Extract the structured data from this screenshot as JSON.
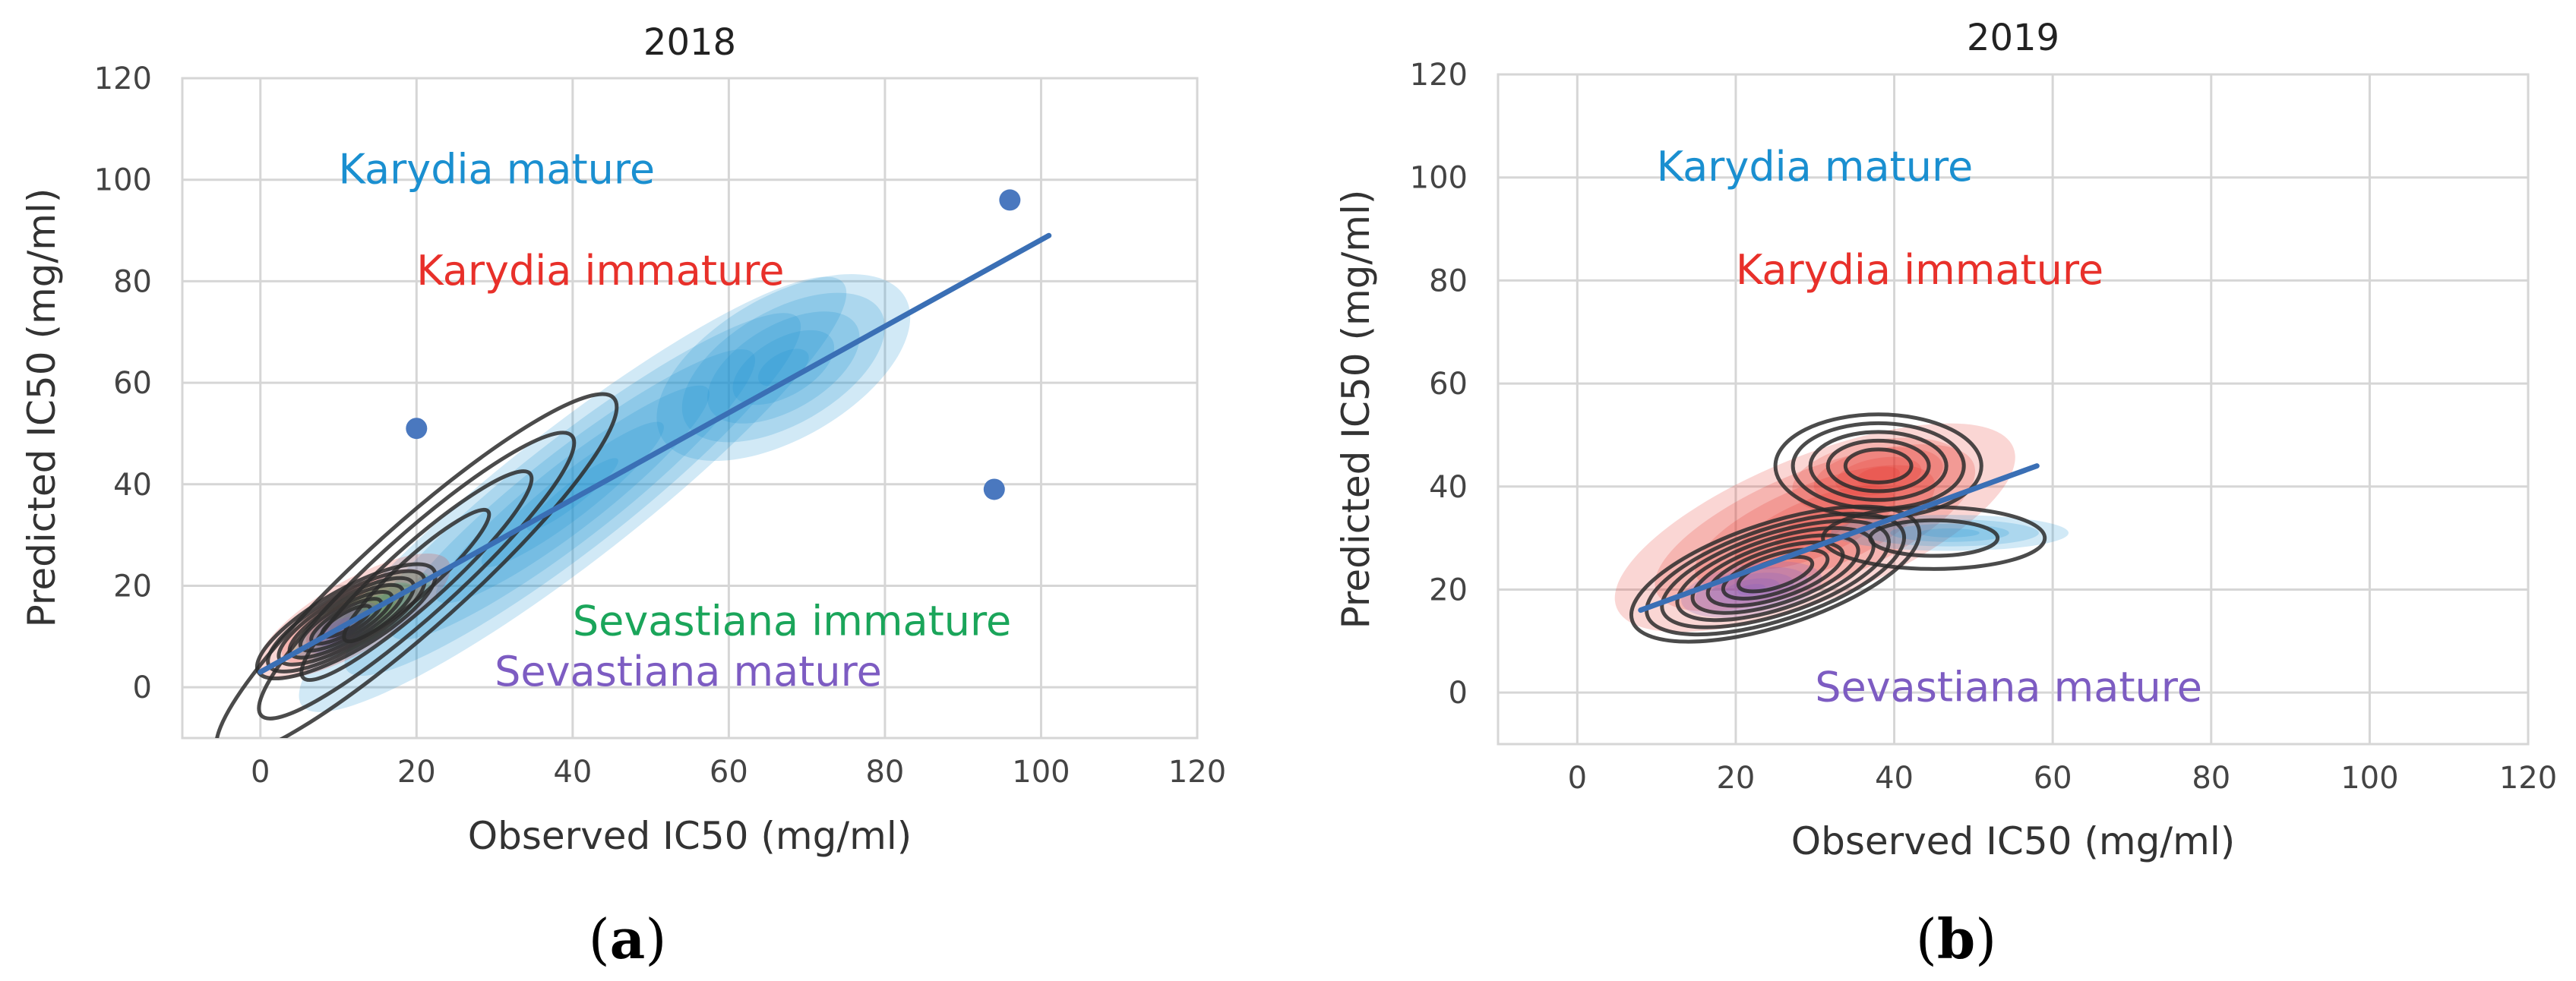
{
  "colors": {
    "karydia_mature": "#1a8fd0",
    "karydia_immature": "#e8302a",
    "sevastiana_immature": "#1aa55a",
    "sevastiana_mature": "#7d5cc2",
    "regression_line": "#3a6fb5",
    "points": "#4a78bf",
    "contour": "#2b2b2b",
    "grid": "#d6d6d6"
  },
  "chart_data": [
    {
      "type": "scatter",
      "title": "2018",
      "caption_letter": "a",
      "xlabel": "Observed IC50 (mg/ml)",
      "ylabel": "Predicted IC50 (mg/ml)",
      "xlim": [
        -10,
        120
      ],
      "ylim": [
        -10,
        120
      ],
      "xticks": [
        "0",
        "20",
        "40",
        "60",
        "80",
        "100",
        "120"
      ],
      "yticks": [
        "0",
        "20",
        "40",
        "60",
        "80",
        "100",
        "120"
      ],
      "grid": true,
      "annotations": [
        {
          "text": "Karydia mature",
          "color": "#1a8fd0",
          "x": 10,
          "y": 102
        },
        {
          "text": "Karydia immature",
          "color": "#e8302a",
          "x": 20,
          "y": 82
        },
        {
          "text": "Sevastiana immature",
          "color": "#1aa55a",
          "x": 40,
          "y": 13
        },
        {
          "text": "Sevastiana mature",
          "color": "#7d5cc2",
          "x": 30,
          "y": 3
        }
      ],
      "regression": {
        "x": [
          0,
          101
        ],
        "y": [
          3,
          89
        ]
      },
      "points": [
        {
          "x": 96,
          "y": 96
        },
        {
          "x": 94,
          "y": 39
        },
        {
          "x": 20,
          "y": 51
        }
      ],
      "density_regions": [
        {
          "name": "Karydia mature",
          "color": "#1a8fd0",
          "cx": 40,
          "cy": 38,
          "rx": 44,
          "ry": 13,
          "angle": 38,
          "levels": 6
        },
        {
          "name": "Karydia mature",
          "color": "#1a8fd0",
          "cx": 67,
          "cy": 63,
          "rx": 18,
          "ry": 14,
          "angle": 30,
          "levels": 5
        },
        {
          "name": "Karydia immature",
          "color": "#e8302a",
          "cx": 12,
          "cy": 14,
          "rx": 14,
          "ry": 7,
          "angle": 30,
          "levels": 4
        },
        {
          "name": "Sevastiana immature",
          "color": "#1aa55a",
          "cx": 13,
          "cy": 14,
          "rx": 10,
          "ry": 5,
          "angle": 30,
          "levels": 4
        },
        {
          "name": "Sevastiana mature",
          "color": "#7d5cc2",
          "cx": 10,
          "cy": 11,
          "rx": 6,
          "ry": 4,
          "angle": 30,
          "levels": 4
        }
      ],
      "contours": [
        {
          "cx": 20,
          "cy": 22,
          "rx": 34,
          "ry": 10,
          "angle": 42,
          "levels": 4
        },
        {
          "cx": 11,
          "cy": 13,
          "rx": 13,
          "ry": 6,
          "angle": 30,
          "levels": 7
        }
      ]
    },
    {
      "type": "scatter",
      "title": "2019",
      "caption_letter": "b",
      "xlabel": "Observed IC50 (mg/ml)",
      "ylabel": "Predicted IC50 (mg/ml)",
      "xlim": [
        -10,
        120
      ],
      "ylim": [
        -10,
        120
      ],
      "xticks": [
        "0",
        "20",
        "40",
        "60",
        "80",
        "100",
        "120"
      ],
      "yticks": [
        "0",
        "20",
        "40",
        "60",
        "80",
        "100",
        "120"
      ],
      "grid": true,
      "annotations": [
        {
          "text": "Karydia mature",
          "color": "#1a8fd0",
          "x": 10,
          "y": 102
        },
        {
          "text": "Karydia immature",
          "color": "#e8302a",
          "x": 20,
          "y": 82
        },
        {
          "text": "Sevastiana mature",
          "color": "#7d5cc2",
          "x": 30,
          "y": 1
        }
      ],
      "regression": {
        "x": [
          8,
          58
        ],
        "y": [
          16,
          44
        ]
      },
      "points": [],
      "density_regions": [
        {
          "name": "Karydia immature",
          "color": "#e8302a",
          "cx": 30,
          "cy": 32,
          "rx": 27,
          "ry": 14,
          "angle": 22,
          "levels": 5
        },
        {
          "name": "Karydia immature",
          "color": "#e8302a",
          "cx": 38,
          "cy": 42,
          "rx": 11,
          "ry": 7,
          "angle": 10,
          "levels": 4
        },
        {
          "name": "Karydia mature",
          "color": "#1a8fd0",
          "cx": 47,
          "cy": 31,
          "rx": 15,
          "ry": 3.5,
          "angle": 0,
          "levels": 4
        },
        {
          "name": "Sevastiana mature",
          "color": "#7d5cc2",
          "cx": 22,
          "cy": 20,
          "rx": 9,
          "ry": 5,
          "angle": 10,
          "levels": 5
        }
      ],
      "contours": [
        {
          "cx": 38,
          "cy": 44,
          "rx": 13,
          "ry": 10,
          "angle": 0,
          "levels": 5
        },
        {
          "cx": 25,
          "cy": 23,
          "rx": 19,
          "ry": 10,
          "angle": 18,
          "levels": 8
        },
        {
          "cx": 45,
          "cy": 30,
          "rx": 14,
          "ry": 6,
          "angle": 0,
          "levels": 2
        }
      ]
    }
  ]
}
